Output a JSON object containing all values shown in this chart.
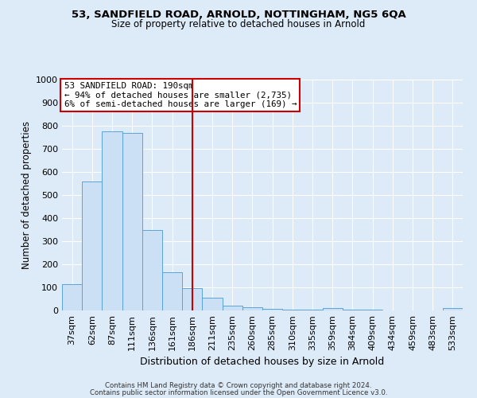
{
  "title1": "53, SANDFIELD ROAD, ARNOLD, NOTTINGHAM, NG5 6QA",
  "title2": "Size of property relative to detached houses in Arnold",
  "xlabel": "Distribution of detached houses by size in Arnold",
  "ylabel": "Number of detached properties",
  "bar_labels": [
    "37sqm",
    "62sqm",
    "87sqm",
    "111sqm",
    "136sqm",
    "161sqm",
    "186sqm",
    "211sqm",
    "235sqm",
    "260sqm",
    "285sqm",
    "310sqm",
    "335sqm",
    "359sqm",
    "384sqm",
    "409sqm",
    "434sqm",
    "459sqm",
    "483sqm",
    "533sqm"
  ],
  "bar_values": [
    113,
    558,
    775,
    770,
    350,
    165,
    97,
    55,
    20,
    13,
    7,
    5,
    5,
    10,
    5,
    5,
    0,
    0,
    0,
    10
  ],
  "bar_color_fill": "#cce0f5",
  "bar_color_edge": "#5ba3d9",
  "vline_x": 6,
  "vline_color": "#cc0000",
  "annotation_lines": [
    "53 SANDFIELD ROAD: 190sqm",
    "← 94% of detached houses are smaller (2,735)",
    "6% of semi-detached houses are larger (169) →"
  ],
  "annotation_box_color": "#ffffff",
  "annotation_box_edge": "#cc0000",
  "ylim": [
    0,
    1000
  ],
  "footer1": "Contains HM Land Registry data © Crown copyright and database right 2024.",
  "footer2": "Contains public sector information licensed under the Open Government Licence v3.0.",
  "background_color": "#ddeaf7",
  "plot_bg_color": "#ddeaf7",
  "grid_color": "#ffffff"
}
